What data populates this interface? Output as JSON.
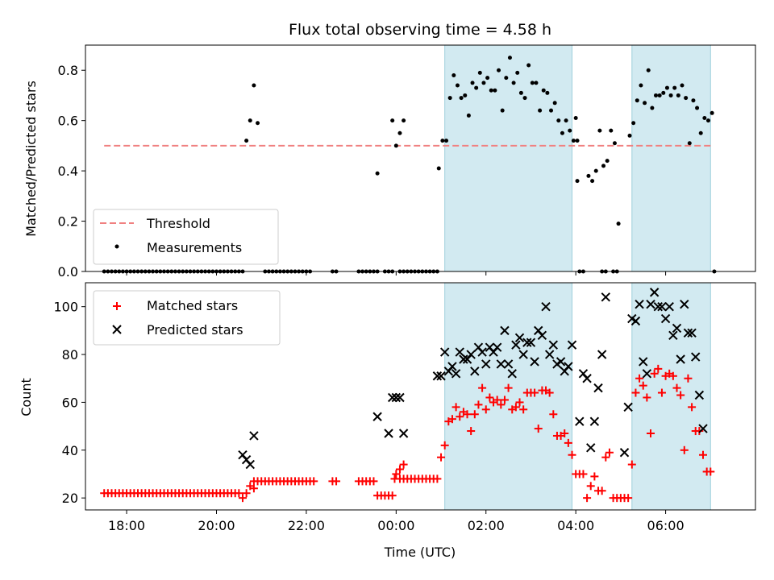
{
  "chart_data": {
    "type": "scatter",
    "title": "Flux total observing time = 4.58 h",
    "colors": {
      "threshold": "#f08080",
      "measurements": "#000000",
      "matched": "#ff0000",
      "predicted": "#000000",
      "shade": "#add8e6"
    },
    "shaded_intervals": [
      [
        "01:05",
        "03:55"
      ],
      [
        "05:15",
        "07:00"
      ]
    ],
    "x_axis": {
      "label": "Time (UTC)",
      "ticks": [
        "18:00",
        "20:00",
        "22:00",
        "00:00",
        "02:00",
        "04:00",
        "06:00"
      ],
      "range": [
        "17:05",
        "08:00"
      ]
    },
    "top_panel": {
      "ylabel": "Matched/Predicted stars",
      "ylim": [
        0,
        0.9
      ],
      "yticks": [
        "0.0",
        "0.2",
        "0.4",
        "0.6",
        "0.8"
      ],
      "threshold": {
        "value": 0.5,
        "x_range": [
          "17:30",
          "07:00"
        ]
      },
      "legend": [
        "Threshold",
        "Measurements"
      ],
      "legend_position": "lower-left",
      "measurements": {
        "zero_runs": [
          [
            "17:30",
            "20:35"
          ],
          [
            "21:05",
            "22:05"
          ],
          [
            "22:35",
            "22:40"
          ],
          [
            "23:10",
            "23:35"
          ],
          [
            "23:45",
            "23:55"
          ],
          [
            "00:05",
            "00:55"
          ],
          [
            "04:05",
            "04:10"
          ],
          [
            "04:35",
            "04:40"
          ],
          [
            "04:50",
            "04:55"
          ],
          [
            "07:05",
            "07:05"
          ]
        ],
        "zero_step_minutes": 5,
        "points": [
          [
            "20:40",
            0.52
          ],
          [
            "20:45",
            0.6
          ],
          [
            "20:50",
            0.74
          ],
          [
            "20:55",
            0.59
          ],
          [
            "23:35",
            0.39
          ],
          [
            "23:55",
            0.6
          ],
          [
            "00:00",
            0.5
          ],
          [
            "00:05",
            0.55
          ],
          [
            "00:10",
            0.6
          ],
          [
            "00:57",
            0.41
          ],
          [
            "01:02",
            0.52
          ],
          [
            "01:07",
            0.52
          ],
          [
            "01:12",
            0.69
          ],
          [
            "01:17",
            0.78
          ],
          [
            "01:22",
            0.74
          ],
          [
            "01:27",
            0.69
          ],
          [
            "01:32",
            0.7
          ],
          [
            "01:37",
            0.62
          ],
          [
            "01:42",
            0.75
          ],
          [
            "01:47",
            0.73
          ],
          [
            "01:52",
            0.79
          ],
          [
            "01:57",
            0.75
          ],
          [
            "02:02",
            0.77
          ],
          [
            "02:07",
            0.72
          ],
          [
            "02:12",
            0.72
          ],
          [
            "02:17",
            0.8
          ],
          [
            "02:22",
            0.64
          ],
          [
            "02:27",
            0.77
          ],
          [
            "02:32",
            0.85
          ],
          [
            "02:37",
            0.75
          ],
          [
            "02:42",
            0.79
          ],
          [
            "02:47",
            0.71
          ],
          [
            "02:52",
            0.69
          ],
          [
            "02:57",
            0.82
          ],
          [
            "03:02",
            0.75
          ],
          [
            "03:07",
            0.75
          ],
          [
            "03:12",
            0.64
          ],
          [
            "03:17",
            0.72
          ],
          [
            "03:22",
            0.71
          ],
          [
            "03:27",
            0.64
          ],
          [
            "03:32",
            0.67
          ],
          [
            "03:37",
            0.6
          ],
          [
            "03:42",
            0.55
          ],
          [
            "03:47",
            0.6
          ],
          [
            "03:52",
            0.56
          ],
          [
            "03:57",
            0.52
          ],
          [
            "04:00",
            0.61
          ],
          [
            "04:02",
            0.52
          ],
          [
            "04:02",
            0.36
          ],
          [
            "04:17",
            0.38
          ],
          [
            "04:22",
            0.36
          ],
          [
            "04:27",
            0.4
          ],
          [
            "04:32",
            0.56
          ],
          [
            "04:37",
            0.42
          ],
          [
            "04:42",
            0.44
          ],
          [
            "04:47",
            0.56
          ],
          [
            "04:52",
            0.51
          ],
          [
            "04:57",
            0.19
          ],
          [
            "05:12",
            0.54
          ],
          [
            "05:17",
            0.59
          ],
          [
            "05:22",
            0.68
          ],
          [
            "05:27",
            0.74
          ],
          [
            "05:32",
            0.67
          ],
          [
            "05:37",
            0.8
          ],
          [
            "05:42",
            0.65
          ],
          [
            "05:47",
            0.7
          ],
          [
            "05:52",
            0.7
          ],
          [
            "05:57",
            0.71
          ],
          [
            "06:02",
            0.73
          ],
          [
            "06:07",
            0.7
          ],
          [
            "06:12",
            0.73
          ],
          [
            "06:17",
            0.7
          ],
          [
            "06:22",
            0.74
          ],
          [
            "06:27",
            0.69
          ],
          [
            "06:32",
            0.51
          ],
          [
            "06:37",
            0.68
          ],
          [
            "06:42",
            0.65
          ],
          [
            "06:47",
            0.55
          ],
          [
            "06:52",
            0.61
          ],
          [
            "06:57",
            0.6
          ],
          [
            "07:02",
            0.63
          ]
        ]
      }
    },
    "bottom_panel": {
      "ylabel": "Count",
      "ylim": [
        15,
        110
      ],
      "yticks": [
        "20",
        "40",
        "60",
        "80",
        "100"
      ],
      "legend": [
        "Matched stars",
        "Predicted stars"
      ],
      "legend_position": "upper-left",
      "matched_flat_runs": [
        {
          "from": "17:30",
          "to": "20:30",
          "value": 22
        },
        {
          "from": "20:50",
          "to": "22:05",
          "value": 27
        },
        {
          "from": "22:35",
          "to": "22:40",
          "value": 27
        },
        {
          "from": "23:10",
          "to": "23:30",
          "value": 27
        },
        {
          "from": "23:35",
          "to": "23:55",
          "value": 21
        },
        {
          "from": "00:05",
          "to": "00:55",
          "value": 28
        }
      ],
      "matched_step_minutes": 5,
      "matched": [
        [
          "20:35",
          20
        ],
        [
          "20:40",
          22
        ],
        [
          "20:45",
          25
        ],
        [
          "20:50",
          24
        ],
        [
          "22:10",
          27
        ],
        [
          "23:58",
          28
        ],
        [
          "00:00",
          30
        ],
        [
          "00:05",
          32
        ],
        [
          "00:10",
          34
        ],
        [
          "01:00",
          37
        ],
        [
          "01:05",
          42
        ],
        [
          "01:10",
          52
        ],
        [
          "01:15",
          53
        ],
        [
          "01:20",
          58
        ],
        [
          "01:25",
          54
        ],
        [
          "01:30",
          56
        ],
        [
          "01:35",
          55
        ],
        [
          "01:40",
          48
        ],
        [
          "01:45",
          55
        ],
        [
          "01:50",
          59
        ],
        [
          "01:55",
          66
        ],
        [
          "02:00",
          57
        ],
        [
          "02:05",
          62
        ],
        [
          "02:10",
          60
        ],
        [
          "02:15",
          61
        ],
        [
          "02:20",
          59
        ],
        [
          "02:25",
          61
        ],
        [
          "02:30",
          66
        ],
        [
          "02:35",
          57
        ],
        [
          "02:40",
          58
        ],
        [
          "02:45",
          60
        ],
        [
          "02:50",
          57
        ],
        [
          "02:55",
          64
        ],
        [
          "03:00",
          64
        ],
        [
          "03:05",
          64
        ],
        [
          "03:10",
          49
        ],
        [
          "03:15",
          65
        ],
        [
          "03:20",
          65
        ],
        [
          "03:25",
          64
        ],
        [
          "03:30",
          55
        ],
        [
          "03:35",
          46
        ],
        [
          "03:40",
          46
        ],
        [
          "03:45",
          47
        ],
        [
          "03:50",
          43
        ],
        [
          "03:55",
          38
        ],
        [
          "04:00",
          30
        ],
        [
          "04:05",
          30
        ],
        [
          "04:10",
          30
        ],
        [
          "04:15",
          20
        ],
        [
          "04:20",
          25
        ],
        [
          "04:25",
          29
        ],
        [
          "04:30",
          23
        ],
        [
          "04:35",
          23
        ],
        [
          "04:40",
          37
        ],
        [
          "04:45",
          39
        ],
        [
          "04:50",
          20
        ],
        [
          "04:55",
          20
        ],
        [
          "05:00",
          20
        ],
        [
          "05:05",
          20
        ],
        [
          "05:10",
          20
        ],
        [
          "05:15",
          34
        ],
        [
          "05:20",
          64
        ],
        [
          "05:25",
          70
        ],
        [
          "05:30",
          67
        ],
        [
          "05:35",
          62
        ],
        [
          "05:40",
          47
        ],
        [
          "05:45",
          72
        ],
        [
          "05:50",
          74
        ],
        [
          "05:55",
          64
        ],
        [
          "06:00",
          71
        ],
        [
          "06:05",
          72
        ],
        [
          "06:10",
          71
        ],
        [
          "06:15",
          66
        ],
        [
          "06:20",
          63
        ],
        [
          "06:25",
          40
        ],
        [
          "06:30",
          70
        ],
        [
          "06:35",
          58
        ],
        [
          "06:40",
          48
        ],
        [
          "06:45",
          48
        ],
        [
          "06:50",
          38
        ],
        [
          "06:55",
          31
        ],
        [
          "07:00",
          31
        ]
      ],
      "predicted": [
        [
          "20:35",
          38
        ],
        [
          "20:40",
          36
        ],
        [
          "20:45",
          34
        ],
        [
          "20:50",
          46
        ],
        [
          "23:35",
          54
        ],
        [
          "23:50",
          47
        ],
        [
          "23:55",
          62
        ],
        [
          "00:00",
          62
        ],
        [
          "00:05",
          62
        ],
        [
          "00:10",
          47
        ],
        [
          "00:55",
          71
        ],
        [
          "01:00",
          71
        ],
        [
          "01:05",
          81
        ],
        [
          "01:10",
          73
        ],
        [
          "01:15",
          75
        ],
        [
          "01:20",
          72
        ],
        [
          "01:25",
          81
        ],
        [
          "01:30",
          78
        ],
        [
          "01:35",
          78
        ],
        [
          "01:40",
          80
        ],
        [
          "01:45",
          73
        ],
        [
          "01:50",
          83
        ],
        [
          "01:55",
          81
        ],
        [
          "02:00",
          76
        ],
        [
          "02:05",
          83
        ],
        [
          "02:10",
          81
        ],
        [
          "02:15",
          83
        ],
        [
          "02:20",
          76
        ],
        [
          "02:25",
          90
        ],
        [
          "02:30",
          76
        ],
        [
          "02:35",
          72
        ],
        [
          "02:40",
          84
        ],
        [
          "02:45",
          87
        ],
        [
          "02:50",
          80
        ],
        [
          "02:55",
          85
        ],
        [
          "03:00",
          85
        ],
        [
          "03:05",
          77
        ],
        [
          "03:10",
          90
        ],
        [
          "03:15",
          88
        ],
        [
          "03:20",
          100
        ],
        [
          "03:25",
          80
        ],
        [
          "03:30",
          84
        ],
        [
          "03:35",
          76
        ],
        [
          "03:40",
          77
        ],
        [
          "03:45",
          73
        ],
        [
          "03:50",
          75
        ],
        [
          "03:55",
          84
        ],
        [
          "04:05",
          52
        ],
        [
          "04:10",
          72
        ],
        [
          "04:15",
          70
        ],
        [
          "04:20",
          41
        ],
        [
          "04:25",
          52
        ],
        [
          "04:30",
          66
        ],
        [
          "04:35",
          80
        ],
        [
          "04:40",
          104
        ],
        [
          "05:05",
          39
        ],
        [
          "05:10",
          58
        ],
        [
          "05:15",
          95
        ],
        [
          "05:20",
          94
        ],
        [
          "05:25",
          101
        ],
        [
          "05:30",
          77
        ],
        [
          "05:35",
          72
        ],
        [
          "05:40",
          101
        ],
        [
          "05:45",
          106
        ],
        [
          "05:50",
          100
        ],
        [
          "05:55",
          100
        ],
        [
          "06:00",
          95
        ],
        [
          "06:05",
          100
        ],
        [
          "06:10",
          88
        ],
        [
          "06:15",
          91
        ],
        [
          "06:20",
          78
        ],
        [
          "06:25",
          101
        ],
        [
          "06:30",
          89
        ],
        [
          "06:35",
          89
        ],
        [
          "06:40",
          79
        ],
        [
          "06:45",
          63
        ],
        [
          "06:50",
          49
        ]
      ]
    }
  }
}
